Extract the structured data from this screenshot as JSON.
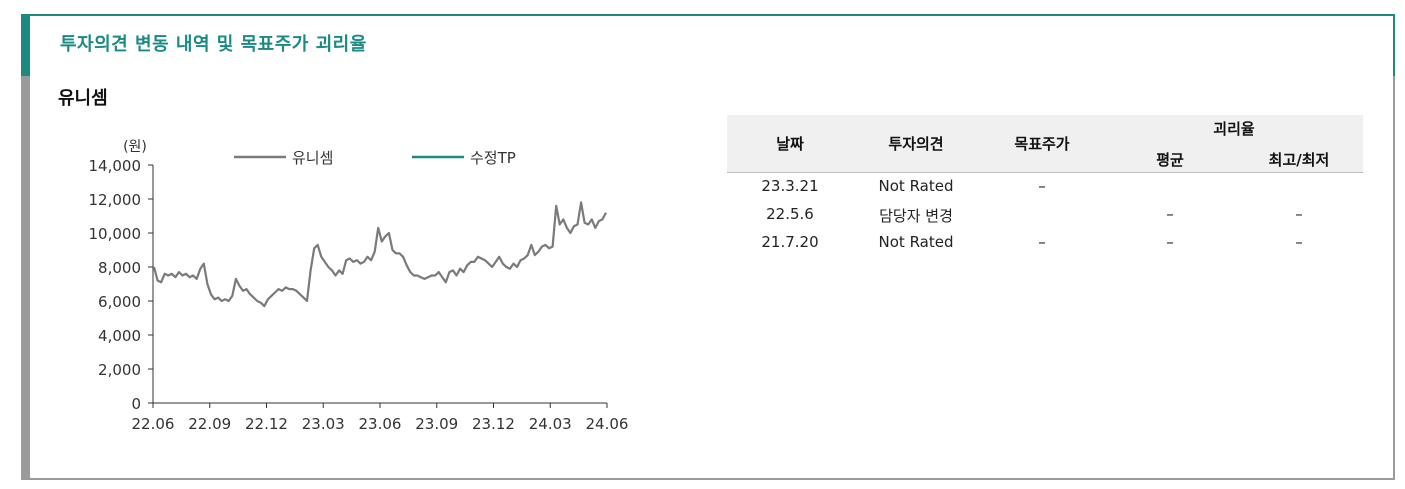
{
  "section": {
    "title": "투자의견 변동 내역 및 목표주가 괴리율",
    "company": "유니셈"
  },
  "chart_data": {
    "type": "line",
    "unit_label": "(원)",
    "x_ticks": [
      "22.06",
      "22.09",
      "22.12",
      "23.03",
      "23.06",
      "23.09",
      "23.12",
      "24.03",
      "24.06"
    ],
    "y_ticks": [
      "14,000",
      "12,000",
      "10,000",
      "8,000",
      "6,000",
      "4,000",
      "2,000",
      "0"
    ],
    "ylim": [
      0,
      14000
    ],
    "legend_position": "top",
    "series": [
      {
        "name": "유니셈",
        "color": "#7a7a7a",
        "values": [
          8000,
          7200,
          7100,
          7600,
          7500,
          7600,
          7400,
          7700,
          7500,
          7600,
          7400,
          7500,
          7300,
          7900,
          8200,
          7000,
          6400,
          6100,
          6200,
          6000,
          6100,
          6000,
          6300,
          7300,
          6900,
          6600,
          6700,
          6400,
          6200,
          6000,
          5900,
          5700,
          6100,
          6300,
          6500,
          6700,
          6600,
          6800,
          6700,
          6700,
          6600,
          6400,
          6200,
          6000,
          7800,
          9100,
          9300,
          8600,
          8300,
          8000,
          7800,
          7500,
          7800,
          7600,
          8400,
          8500,
          8300,
          8400,
          8200,
          8300,
          8600,
          8400,
          8900,
          10300,
          9500,
          9800,
          10000,
          9000,
          8800,
          8800,
          8600,
          8100,
          7700,
          7500,
          7500,
          7400,
          7300,
          7400,
          7500,
          7500,
          7700,
          7400,
          7100,
          7700,
          7800,
          7500,
          7900,
          7700,
          8100,
          8300,
          8300,
          8600,
          8500,
          8400,
          8200,
          8000,
          8300,
          8600,
          8200,
          8000,
          7900,
          8200,
          8000,
          8400,
          8500,
          8700,
          9300,
          8700,
          8900,
          9200,
          9300,
          9100,
          9200,
          11600,
          10500,
          10800,
          10300,
          10000,
          10400,
          10500,
          11800,
          10600,
          10500,
          10800,
          10300,
          10700,
          10800,
          11200
        ]
      },
      {
        "name": "수정TP",
        "color": "#1a8a83",
        "values": []
      }
    ]
  },
  "table": {
    "headers": {
      "date": "날짜",
      "opinion": "투자의견",
      "target": "목표주가",
      "gap": "괴리율",
      "avg": "평균",
      "hilo": "최고/최저"
    },
    "rows": [
      {
        "date": "23.3.21",
        "opinion": "Not Rated",
        "target": "–",
        "avg": "",
        "hilo": ""
      },
      {
        "date": "22.5.6",
        "opinion": "담당자 변경",
        "target": "",
        "avg": "–",
        "hilo": "–"
      },
      {
        "date": "21.7.20",
        "opinion": "Not Rated",
        "target": "–",
        "avg": "–",
        "hilo": "–"
      }
    ]
  }
}
